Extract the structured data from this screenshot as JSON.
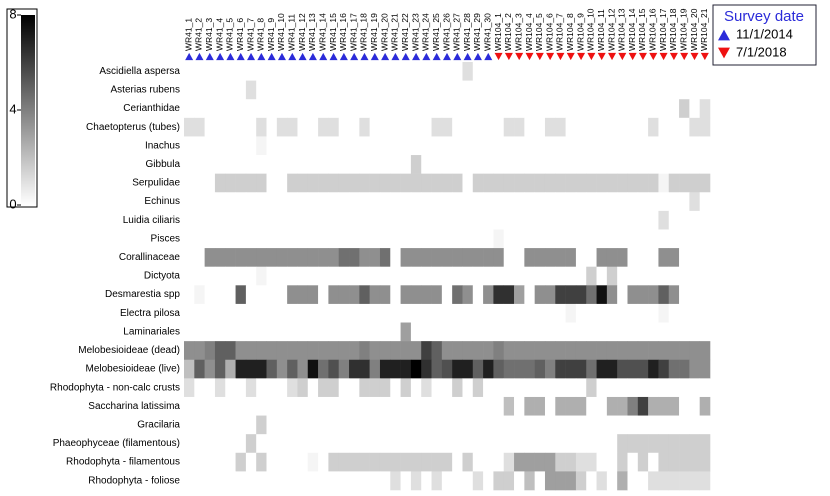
{
  "chart_data": {
    "type": "heatmap",
    "rows": [
      "Ascidiella aspersa",
      "Asterias rubens",
      "Cerianthidae",
      "Chaetopterus (tubes)",
      "Inachus",
      "Gibbula",
      "Serpulidae",
      "Echinus",
      "Luidia ciliaris",
      "Pisces",
      "Corallinaceae",
      "Dictyota",
      "Desmarestia spp",
      "Electra pilosa",
      "Laminariales",
      "Melobesioideae (dead)",
      "Melobesioideae (live)",
      "Rhodophyta - non-calc crusts",
      "Saccharina latissima",
      "Gracilaria",
      "Phaeophyceae (filamentous)",
      "Rhodophyta - filamentous",
      "Rhodophyta - foliose"
    ],
    "legend_title": "Survey date",
    "groups": [
      {
        "name": "11/1/2014",
        "color": "#2b2bd9",
        "marker": "triangle-up",
        "columns": [
          "WR41_1",
          "WR41_2",
          "WR41_3",
          "WR41_4",
          "WR41_5",
          "WR41_6",
          "WR41_7",
          "WR41_8",
          "WR41_9",
          "WR41_10",
          "WR41_11",
          "WR41_12",
          "WR41_13",
          "WR41_14",
          "WR41_15",
          "WR41_16",
          "WR41_17",
          "WR41_18",
          "WR41_19",
          "WR41_20",
          "WR41_21",
          "WR41_22",
          "WR41_23",
          "WR41_24",
          "WR41_25",
          "WR41_26",
          "WR41_27",
          "WR41_28",
          "WR41_29",
          "WR41_30"
        ]
      },
      {
        "name": "7/1/2018",
        "color": "#ee1111",
        "marker": "triangle-down",
        "columns": [
          "WR104_1",
          "WR104_2",
          "WR104_3",
          "WR104_4",
          "WR104_5",
          "WR104_6",
          "WR104_7",
          "WR104_8",
          "WR104_9",
          "WR104_10",
          "WR104_11",
          "WR104_12",
          "WR104_13",
          "WR104_14",
          "WR104_15",
          "WR104_16",
          "WR104_17",
          "WR104_18",
          "WR104_19",
          "WR104_20",
          "WR104_21"
        ]
      }
    ],
    "colorbar": {
      "lim": [
        0,
        8
      ],
      "ticks": [
        0,
        4,
        8
      ],
      "low_color": "#ffffff",
      "high_color": "#000000"
    },
    "values": [
      [
        0,
        0,
        0,
        0,
        0,
        0,
        0,
        0,
        0,
        0,
        0,
        0,
        0,
        0,
        0,
        0,
        0,
        0,
        0,
        0,
        0,
        0,
        0,
        0,
        0,
        0,
        0,
        1,
        0,
        0,
        0,
        0,
        0,
        0,
        0,
        0,
        0,
        0,
        0,
        0,
        0,
        0,
        0,
        0,
        0,
        0,
        0,
        0,
        0,
        0,
        0
      ],
      [
        0,
        0,
        0,
        0,
        0,
        0,
        1,
        0,
        0,
        0,
        0,
        0,
        0,
        0,
        0,
        0,
        0,
        0,
        0,
        0,
        0,
        0,
        0,
        0,
        0,
        0,
        0,
        0,
        0,
        0,
        0,
        0,
        0,
        0,
        0,
        0,
        0,
        0,
        0,
        0,
        0,
        0,
        0,
        0,
        0,
        0,
        0,
        0,
        0,
        0,
        0
      ],
      [
        0,
        0,
        0,
        0,
        0,
        0,
        0,
        0,
        0,
        0,
        0,
        0,
        0,
        0,
        0,
        0,
        0,
        0,
        0,
        0,
        0,
        0,
        0,
        0,
        0,
        0,
        0,
        0,
        0,
        0,
        0,
        0,
        0,
        0,
        0,
        0,
        0,
        0,
        0,
        0,
        0,
        0,
        0,
        0,
        0,
        0,
        0,
        0,
        1.5,
        0,
        1
      ],
      [
        1,
        1,
        0,
        0,
        0,
        0,
        0,
        1,
        0,
        1,
        1,
        0,
        0,
        1,
        1,
        0,
        0,
        1,
        0,
        0,
        0,
        0,
        0,
        0,
        1,
        1,
        0,
        0,
        0,
        0,
        0,
        1,
        1,
        0,
        0,
        1,
        1,
        0,
        0,
        0,
        0,
        0,
        0,
        0,
        0,
        1,
        0,
        0,
        0,
        1,
        1
      ],
      [
        0,
        0,
        0,
        0,
        0,
        0,
        0,
        0.3,
        0,
        0,
        0,
        0,
        0,
        0,
        0,
        0,
        0,
        0,
        0,
        0,
        0,
        0,
        0,
        0,
        0,
        0,
        0,
        0,
        0,
        0,
        0,
        0,
        0,
        0,
        0,
        0,
        0,
        0,
        0,
        0,
        0,
        0,
        0,
        0,
        0,
        0,
        0,
        0,
        0,
        0,
        0
      ],
      [
        0,
        0,
        0,
        0,
        0,
        0,
        0,
        0,
        0,
        0,
        0,
        0,
        0,
        0,
        0,
        0,
        0,
        0,
        0,
        0,
        0,
        0,
        1.5,
        0,
        0,
        0,
        0,
        0,
        0,
        0,
        0,
        0,
        0,
        0,
        0,
        0,
        0,
        0,
        0,
        0,
        0,
        0,
        0,
        0,
        0,
        0,
        0,
        0,
        0,
        0,
        0
      ],
      [
        0,
        0,
        0,
        1.5,
        1.5,
        1.5,
        1.5,
        1.5,
        0,
        0,
        1.5,
        1.5,
        1.5,
        1.5,
        1.5,
        1.5,
        1.5,
        1.5,
        1.5,
        1.5,
        1.5,
        1.5,
        1.5,
        1.5,
        1.5,
        1.5,
        1.5,
        0,
        1.5,
        1.5,
        1.5,
        1.5,
        1.5,
        1.5,
        1.5,
        1.5,
        1.5,
        1.5,
        1.5,
        1.5,
        1.5,
        1.5,
        1.5,
        1.5,
        1.5,
        1.5,
        0.3,
        1.5,
        1.5,
        1.5,
        1.5
      ],
      [
        0,
        0,
        0,
        0,
        0,
        0,
        0,
        0,
        0,
        0,
        0,
        0,
        0,
        0,
        0,
        0,
        0,
        0,
        0,
        0,
        0,
        0,
        0,
        0,
        0,
        0,
        0,
        0,
        0,
        0,
        0,
        0,
        0,
        0,
        0,
        0,
        0,
        0,
        0,
        0,
        0,
        0,
        0,
        0,
        0,
        0,
        0,
        0,
        0,
        1,
        0
      ],
      [
        0,
        0,
        0,
        0,
        0,
        0,
        0,
        0,
        0,
        0,
        0,
        0,
        0,
        0,
        0,
        0,
        0,
        0,
        0,
        0,
        0,
        0,
        0,
        0,
        0,
        0,
        0,
        0,
        0,
        0,
        0,
        0,
        0,
        0,
        0,
        0,
        0,
        0,
        0,
        0,
        0,
        0,
        0,
        0,
        0,
        0,
        1,
        0,
        0,
        0,
        0
      ],
      [
        0,
        0,
        0,
        0,
        0,
        0,
        0,
        0,
        0,
        0,
        0,
        0,
        0,
        0,
        0,
        0,
        0,
        0,
        0,
        0,
        0,
        0,
        0,
        0,
        0,
        0,
        0,
        0,
        0,
        0,
        0.3,
        0,
        0,
        0,
        0,
        0,
        0,
        0,
        0,
        0,
        0,
        0,
        0,
        0,
        0,
        0,
        0,
        0,
        0,
        0,
        0
      ],
      [
        0,
        0,
        3.5,
        3.5,
        3.5,
        3.5,
        3.5,
        3.5,
        3.5,
        3.5,
        3.5,
        3.5,
        3.5,
        3.5,
        3.5,
        4.5,
        4.5,
        3.5,
        3.5,
        4.5,
        0,
        3.5,
        3.5,
        3.5,
        3.5,
        3.5,
        3.5,
        3.5,
        3.5,
        3.5,
        3.5,
        0,
        0,
        3.5,
        3.5,
        3.5,
        3.5,
        3.5,
        0,
        0,
        3.5,
        3.5,
        3.5,
        0,
        0,
        0,
        3.5,
        3.5,
        0,
        0,
        0
      ],
      [
        0,
        0,
        0,
        0,
        0,
        0,
        0,
        0.3,
        0,
        0,
        0,
        0,
        0,
        0,
        0,
        0,
        0,
        0,
        0,
        0,
        0,
        0,
        0,
        0,
        0,
        0,
        0,
        0,
        0,
        0,
        0,
        0,
        0,
        0,
        0,
        0,
        0,
        0,
        0,
        1.5,
        0,
        1.5,
        0,
        0,
        0,
        0,
        0,
        0,
        0,
        0,
        0
      ],
      [
        0,
        0.3,
        0,
        0,
        0,
        5,
        0,
        0,
        0,
        0,
        3.5,
        3.5,
        3.5,
        0,
        3.5,
        3.5,
        3.5,
        5,
        3.5,
        3.5,
        0,
        3.5,
        3.5,
        3.5,
        3.5,
        0,
        4.5,
        3.5,
        0,
        3.5,
        6.5,
        6.5,
        3,
        0,
        3.5,
        3.5,
        6,
        6,
        6,
        4.5,
        7.5,
        3.5,
        0,
        3.5,
        3.5,
        3.5,
        5,
        3.5,
        0,
        0,
        0
      ],
      [
        0,
        0,
        0,
        0,
        0,
        0,
        0,
        0,
        0,
        0,
        0,
        0,
        0,
        0,
        0,
        0,
        0,
        0,
        0,
        0,
        0,
        0,
        0,
        0,
        0,
        0,
        0,
        0,
        0,
        0,
        0,
        0,
        0,
        0,
        0,
        0,
        0,
        0.3,
        0,
        0,
        0,
        0,
        0,
        0,
        0,
        0,
        0.3,
        0,
        0,
        0,
        0
      ],
      [
        0,
        0,
        0,
        0,
        0,
        0,
        0,
        0,
        0,
        0,
        0,
        0,
        0,
        0,
        0,
        0,
        0,
        0,
        0,
        0,
        0,
        3,
        0,
        0,
        0,
        0,
        0,
        0,
        0,
        0,
        0,
        0,
        0,
        0,
        0,
        0,
        0,
        0,
        0,
        0,
        0,
        0,
        0,
        0,
        0,
        0,
        0,
        0,
        0,
        0,
        0
      ],
      [
        3.5,
        3.5,
        4,
        5,
        5,
        3.5,
        3.5,
        3.5,
        3.5,
        3.5,
        3.5,
        3.5,
        3.5,
        3.5,
        3.5,
        3.5,
        3.5,
        4,
        3.5,
        3.5,
        3.5,
        3.5,
        3.5,
        6,
        5,
        3.5,
        3.5,
        3.5,
        3.5,
        3.5,
        4,
        3.5,
        3.5,
        3.5,
        3.5,
        3.5,
        3.5,
        3.5,
        3.5,
        3.5,
        3.5,
        3.5,
        3.5,
        3.5,
        3.5,
        3.5,
        3.5,
        3.5,
        3.5,
        3.5,
        3.5
      ],
      [
        2,
        5,
        3.5,
        5,
        2.5,
        7,
        7,
        7,
        5,
        3.5,
        5,
        3.5,
        7.5,
        4.5,
        5.5,
        4,
        6.5,
        6.5,
        4,
        7,
        7,
        7,
        8,
        6.5,
        5,
        5.5,
        7,
        7,
        5,
        7,
        5,
        4.5,
        4.5,
        4.5,
        5,
        4,
        6,
        6,
        6,
        4.5,
        7,
        7,
        5.5,
        5.5,
        5.5,
        7,
        6,
        4.5,
        4.5,
        3.5,
        3.5
      ],
      [
        1,
        0,
        0,
        1,
        0,
        0,
        1,
        0,
        0,
        0,
        1,
        1.5,
        0,
        1.5,
        1.5,
        0,
        0,
        1.5,
        1.5,
        1.5,
        0,
        1.5,
        0,
        1,
        0,
        0,
        1.5,
        0,
        1.5,
        0,
        0,
        0,
        0,
        0,
        0,
        0,
        0,
        0,
        0,
        1.5,
        0,
        0,
        0,
        0,
        0,
        0,
        0,
        0,
        0,
        0,
        0
      ],
      [
        0,
        0,
        0,
        0,
        0,
        0,
        0,
        0,
        0,
        0,
        0,
        0,
        0,
        0,
        0,
        0,
        0,
        0,
        0,
        0,
        0,
        0,
        0,
        0,
        0,
        0,
        0,
        0,
        0,
        0,
        0,
        2,
        0,
        2.5,
        2.5,
        0,
        2.5,
        2.5,
        2.5,
        0,
        0,
        2.5,
        2.5,
        4,
        6,
        2.5,
        2.5,
        2.5,
        0,
        0,
        2.5
      ],
      [
        0,
        0,
        0,
        0,
        0,
        0,
        0,
        1.5,
        0,
        0,
        0,
        0,
        0,
        0,
        0,
        0,
        0,
        0,
        0,
        0,
        0,
        0,
        0,
        0,
        0,
        0,
        0,
        0,
        0,
        0,
        0,
        0,
        0,
        0,
        0,
        0,
        0,
        0,
        0,
        0,
        0,
        0,
        0,
        0,
        0,
        0,
        0,
        0,
        0,
        0,
        0
      ],
      [
        0,
        0,
        0,
        0,
        0,
        0,
        1.5,
        0,
        0,
        0,
        0,
        0,
        0,
        0,
        0,
        0,
        0,
        0,
        0,
        0,
        0,
        0,
        0,
        0,
        0,
        0,
        0,
        0,
        0,
        0,
        0,
        0,
        0,
        0,
        0,
        0,
        0,
        0,
        0,
        0,
        0,
        0,
        1.5,
        1.5,
        1.5,
        1.5,
        1.5,
        1.5,
        1.5,
        1.5,
        1.5
      ],
      [
        0,
        0,
        0,
        0,
        0,
        1.5,
        0,
        1.5,
        0,
        0,
        0,
        0,
        0.3,
        0,
        1.5,
        1.5,
        1.5,
        1.5,
        1.5,
        1.5,
        1.5,
        1.5,
        1.5,
        1.5,
        1.5,
        1.5,
        0,
        1.5,
        0,
        0,
        0,
        1,
        3,
        3,
        3,
        3,
        1.5,
        1.5,
        1,
        1,
        0,
        0,
        1.5,
        0,
        1.5,
        0,
        1.5,
        1.5,
        1.5,
        1.5,
        1.5
      ],
      [
        0,
        0,
        0,
        0,
        0,
        0,
        0,
        0,
        0,
        0,
        0,
        0,
        0,
        0,
        0,
        0,
        0,
        0,
        0,
        0,
        1,
        0,
        1,
        0,
        1,
        0,
        0,
        0,
        1,
        0,
        1.5,
        1.5,
        0,
        2,
        0,
        3,
        3,
        3,
        1.5,
        0,
        1,
        0,
        2.5,
        0,
        0,
        1,
        1,
        1,
        1,
        1,
        1
      ]
    ]
  }
}
